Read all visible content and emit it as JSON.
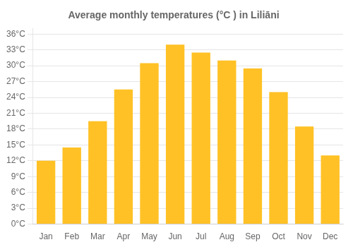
{
  "chart_data": {
    "type": "bar",
    "title": "Average monthly temperatures (°C ) in Liliāni",
    "categories": [
      "Jan",
      "Feb",
      "Mar",
      "Apr",
      "May",
      "Jun",
      "Jul",
      "Aug",
      "Sep",
      "Oct",
      "Nov",
      "Dec"
    ],
    "values": [
      12.0,
      14.5,
      19.5,
      25.5,
      30.5,
      34.0,
      32.5,
      31.0,
      29.5,
      25.0,
      18.5,
      13.0
    ],
    "color": "#FFC125",
    "ylim": [
      0,
      37
    ],
    "yticks": [
      {
        "value": 0,
        "label": "0°C"
      },
      {
        "value": 3,
        "label": "3°C"
      },
      {
        "value": 6,
        "label": "6°C"
      },
      {
        "value": 9,
        "label": "9°C"
      },
      {
        "value": 12,
        "label": "12°C"
      },
      {
        "value": 15,
        "label": "15°C"
      },
      {
        "value": 18,
        "label": "18°C"
      },
      {
        "value": 21,
        "label": "21°C"
      },
      {
        "value": 24,
        "label": "24°C"
      },
      {
        "value": 27,
        "label": "27°C"
      },
      {
        "value": 30,
        "label": "30°C"
      },
      {
        "value": 33,
        "label": "33°C"
      },
      {
        "value": 36,
        "label": "36°C"
      }
    ],
    "grid": true
  }
}
